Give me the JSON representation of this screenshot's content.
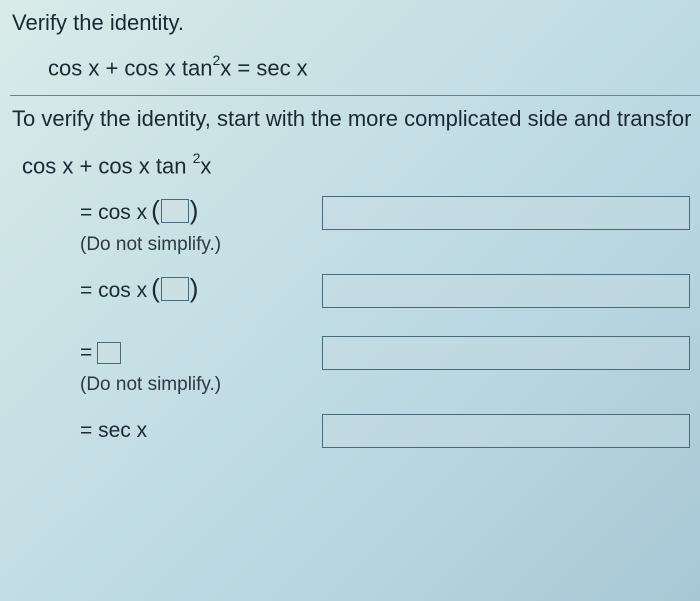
{
  "title": "Verify the identity.",
  "equation_main": "cos x + cos x tan",
  "equation_sup": "2",
  "equation_tail": "x = sec x",
  "instruction": "To verify the identity, start with the more complicated side and transfor",
  "lhs_a": "cos x + cos x tan ",
  "lhs_sup": "2",
  "lhs_b": "x",
  "step1_prefix": "= cos x",
  "note1": "(Do not simplify.)",
  "step2_prefix": "= cos x",
  "step3_prefix": "=",
  "note2": "(Do not simplify.)",
  "step4": "= sec x",
  "colors": {
    "text": "#1a2a35",
    "border": "#4a6a78",
    "bg_gradient_from": "#d8ebe8",
    "bg_gradient_to": "#a8c8d5"
  }
}
